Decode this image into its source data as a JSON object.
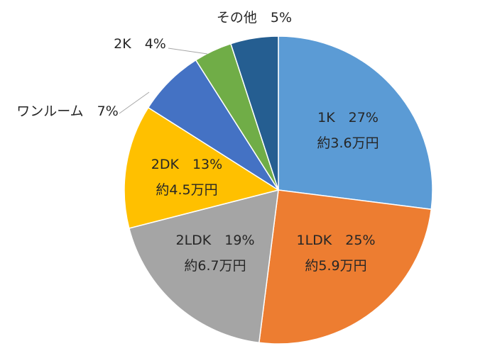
{
  "chart_data": {
    "type": "pie",
    "slices": [
      {
        "category": "1K",
        "percent_label": "27%",
        "value": 27,
        "rent": "約3.6万円",
        "color": "#5B9BD5"
      },
      {
        "category": "1LDK",
        "percent_label": "25%",
        "value": 25,
        "rent": "約5.9万円",
        "color": "#ED7D31"
      },
      {
        "category": "2LDK",
        "percent_label": "19%",
        "value": 19,
        "rent": "約6.7万円",
        "color": "#A5A5A5"
      },
      {
        "category": "2DK",
        "percent_label": "13%",
        "value": 13,
        "rent": "約4.5万円",
        "color": "#FFC000"
      },
      {
        "category": "ワンルーム",
        "percent_label": "7%",
        "value": 7,
        "rent": "",
        "color": "#4472C4"
      },
      {
        "category": "2K",
        "percent_label": "4%",
        "value": 4,
        "rent": "",
        "color": "#70AD47"
      },
      {
        "category": "その他",
        "percent_label": "5%",
        "value": 5,
        "rent": "",
        "color": "#255E91"
      }
    ]
  }
}
